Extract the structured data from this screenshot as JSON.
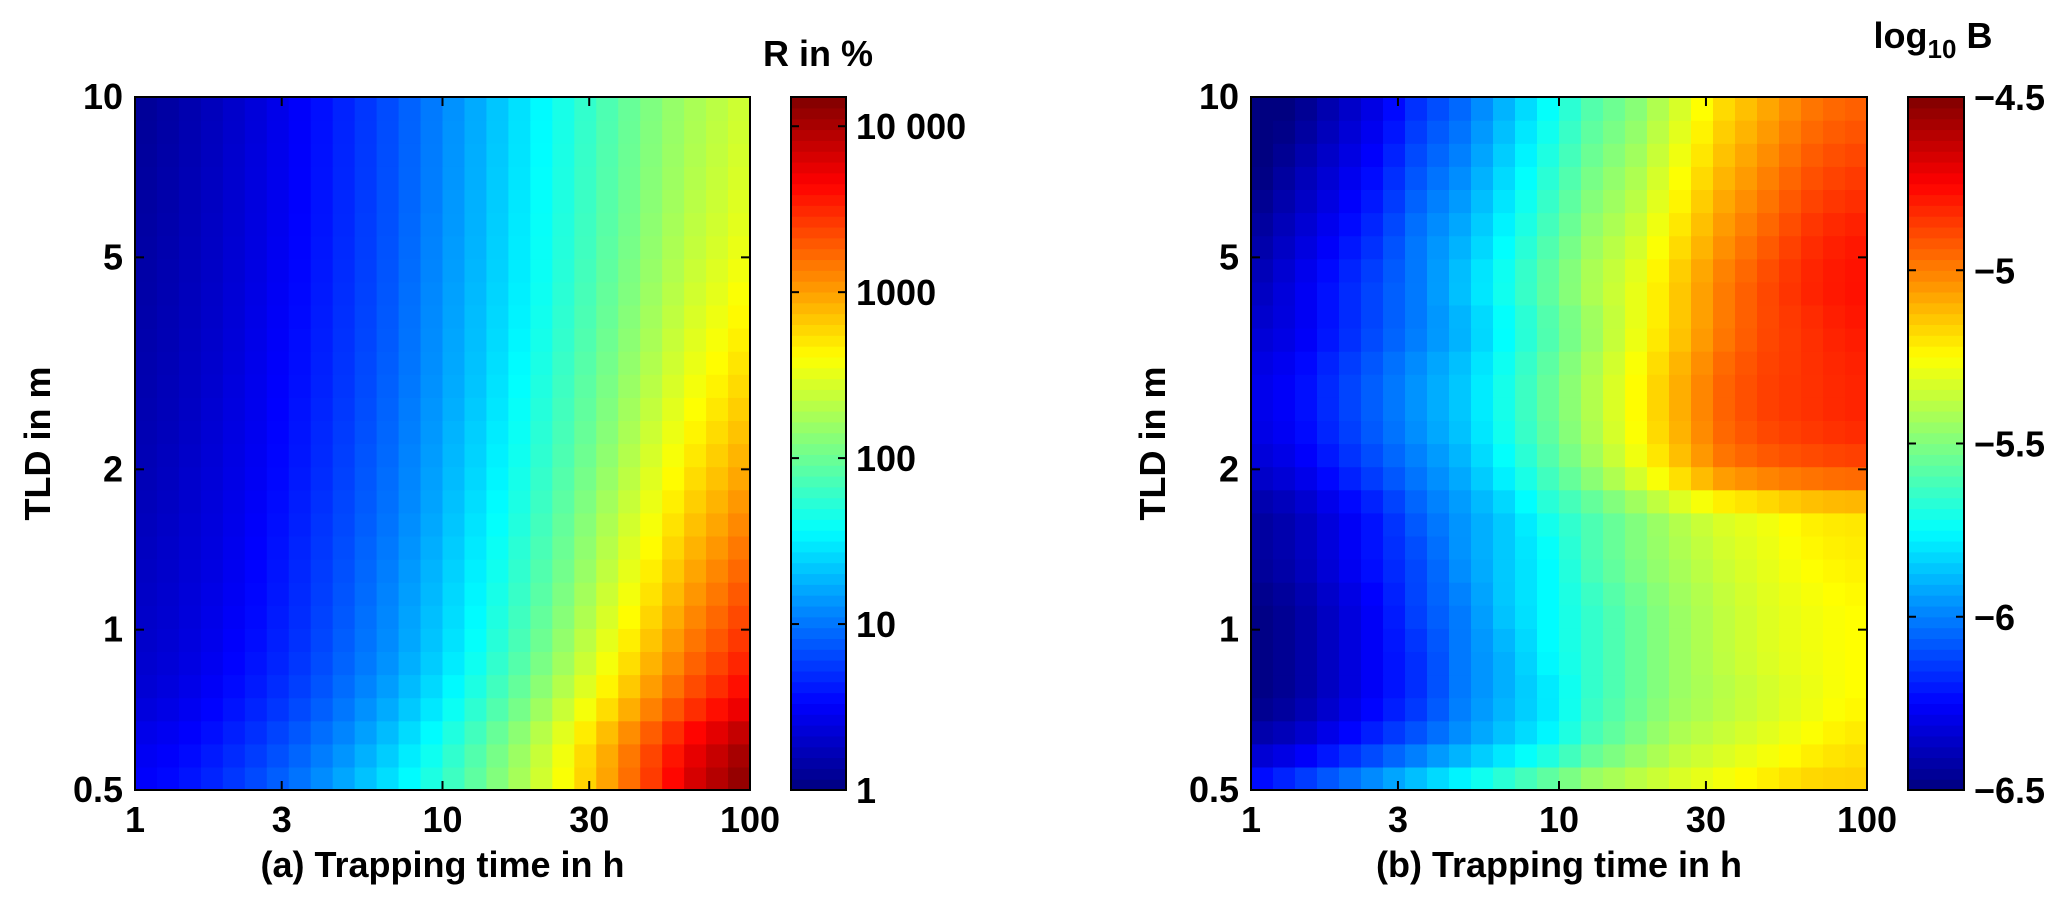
{
  "chart_data": [
    {
      "type": "heatmap",
      "panel_label": "(a)",
      "xlabel": "(a) Trapping time in h",
      "ylabel": "TLD in m",
      "x_scale": "log",
      "y_scale": "log",
      "xlim": [
        1,
        100
      ],
      "ylim": [
        0.5,
        10
      ],
      "x_ticks": [
        1,
        3,
        10,
        30,
        100
      ],
      "x_tick_labels": [
        "1",
        "3",
        "10",
        "30",
        "100"
      ],
      "y_ticks": [
        0.5,
        1,
        2,
        5,
        10
      ],
      "y_tick_labels": [
        "0.5",
        "1",
        "2",
        "5",
        "10"
      ],
      "colorbar": {
        "title": "R in %",
        "scale": "log",
        "range": [
          1,
          15000
        ],
        "ticks": [
          1,
          10,
          100,
          1000,
          10000
        ],
        "tick_labels": [
          "1",
          "10",
          "100",
          "1000",
          "10 000"
        ],
        "colormap": "jet"
      },
      "grid": false,
      "x": [
        1,
        1.38,
        1.89,
        2.6,
        3.57,
        4.91,
        6.76,
        9.3,
        12.8,
        17.6,
        24.2,
        33.3,
        45.8,
        63,
        86.6,
        100
      ],
      "y": [
        0.5,
        0.61,
        0.74,
        0.9,
        1.1,
        1.35,
        1.64,
        2.0,
        2.45,
        2.99,
        3.65,
        4.46,
        5.45,
        6.66,
        8.13,
        10
      ],
      "values_grid_description_units": "R in %",
      "values": [
        [
          3.2,
          3.8,
          5.2,
          7.5,
          11,
          18,
          30,
          52,
          95,
          180,
          380,
          900,
          2400,
          6500,
          12000,
          15000
        ],
        [
          2.8,
          3.2,
          4.2,
          5.8,
          8.5,
          13,
          22,
          40,
          75,
          150,
          330,
          800,
          2000,
          4800,
          8500,
          11000
        ],
        [
          2.2,
          2.6,
          3.4,
          4.6,
          6.5,
          10,
          16,
          28,
          52,
          100,
          210,
          460,
          1050,
          2300,
          4000,
          5200
        ],
        [
          2.0,
          2.3,
          3.0,
          4.0,
          5.6,
          8.5,
          13,
          22,
          40,
          75,
          150,
          320,
          700,
          1500,
          2600,
          3400
        ],
        [
          1.9,
          2.2,
          2.8,
          3.7,
          5.2,
          7.8,
          12,
          20,
          35,
          63,
          120,
          250,
          520,
          1100,
          1900,
          2500
        ],
        [
          1.8,
          2.1,
          2.6,
          3.5,
          4.9,
          7.2,
          11,
          18,
          31,
          55,
          100,
          200,
          410,
          820,
          1400,
          1800
        ],
        [
          1.7,
          2.0,
          2.5,
          3.3,
          4.6,
          6.7,
          10,
          16,
          28,
          48,
          88,
          170,
          330,
          640,
          1050,
          1350
        ],
        [
          1.6,
          1.9,
          2.4,
          3.1,
          4.3,
          6.3,
          9.4,
          15,
          25,
          43,
          76,
          140,
          270,
          500,
          800,
          1000
        ],
        [
          1.55,
          1.8,
          2.3,
          3.0,
          4.1,
          5.9,
          8.8,
          14,
          23,
          39,
          68,
          120,
          225,
          400,
          620,
          780
        ],
        [
          1.5,
          1.75,
          2.2,
          2.9,
          3.9,
          5.6,
          8.3,
          13,
          21,
          36,
          62,
          108,
          190,
          330,
          500,
          620
        ],
        [
          1.45,
          1.7,
          2.1,
          2.8,
          3.8,
          5.4,
          7.9,
          12.5,
          20,
          33,
          56,
          96,
          165,
          280,
          410,
          500
        ],
        [
          1.4,
          1.65,
          2.05,
          2.7,
          3.6,
          5.2,
          7.6,
          12,
          19,
          31,
          52,
          88,
          148,
          240,
          350,
          420
        ],
        [
          1.35,
          1.6,
          2.0,
          2.6,
          3.5,
          5.0,
          7.3,
          11.5,
          18,
          30,
          49,
          82,
          135,
          215,
          300,
          360
        ],
        [
          1.3,
          1.55,
          1.95,
          2.55,
          3.4,
          4.9,
          7.1,
          11,
          17.5,
          29,
          47,
          78,
          126,
          195,
          270,
          320
        ],
        [
          1.25,
          1.5,
          1.9,
          2.5,
          3.35,
          4.8,
          7.0,
          10.8,
          17,
          28,
          45,
          75,
          120,
          182,
          250,
          290
        ],
        [
          1.2,
          1.45,
          1.85,
          2.45,
          3.3,
          4.7,
          6.9,
          10.6,
          16.5,
          27,
          44,
          72,
          115,
          172,
          235,
          270
        ]
      ]
    },
    {
      "type": "heatmap",
      "panel_label": "(b)",
      "xlabel": "(b) Trapping time in h",
      "ylabel": "TLD in m",
      "x_scale": "log",
      "y_scale": "log",
      "xlim": [
        1,
        100
      ],
      "ylim": [
        0.5,
        10
      ],
      "x_ticks": [
        1,
        3,
        10,
        30,
        100
      ],
      "x_tick_labels": [
        "1",
        "3",
        "10",
        "30",
        "100"
      ],
      "y_ticks": [
        0.5,
        1,
        2,
        5,
        10
      ],
      "y_tick_labels": [
        "0.5",
        "1",
        "2",
        "5",
        "10"
      ],
      "colorbar": {
        "title_base": "log",
        "title_sub": "10",
        "title_tail": " B",
        "scale": "linear",
        "range": [
          -6.5,
          -4.5
        ],
        "ticks": [
          -6.5,
          -6,
          -5.5,
          -5,
          -4.5
        ],
        "tick_labels": [
          "−6.5",
          "−6",
          "−5.5",
          "−5",
          "−4.5"
        ],
        "colormap": "jet"
      },
      "grid": false,
      "x": [
        1,
        1.38,
        1.89,
        2.6,
        3.57,
        4.91,
        6.76,
        9.3,
        12.8,
        17.6,
        24.2,
        33.3,
        45.8,
        63,
        86.6,
        100
      ],
      "y": [
        0.5,
        0.61,
        0.74,
        0.9,
        1.1,
        1.35,
        1.64,
        2.0,
        2.45,
        2.99,
        3.65,
        4.46,
        5.45,
        6.66,
        8.13,
        10
      ],
      "values": [
        [
          -6.2,
          -6.1,
          -6.0,
          -5.9,
          -5.8,
          -5.7,
          -5.6,
          -5.5,
          -5.4,
          -5.35,
          -5.3,
          -5.25,
          -5.2,
          -5.15,
          -5.15,
          -5.15
        ],
        [
          -6.4,
          -6.35,
          -6.25,
          -6.15,
          -6.05,
          -5.95,
          -5.85,
          -5.75,
          -5.6,
          -5.5,
          -5.4,
          -5.35,
          -5.3,
          -5.25,
          -5.2,
          -5.2
        ],
        [
          -6.5,
          -6.45,
          -6.35,
          -6.25,
          -6.15,
          -6.0,
          -5.9,
          -5.8,
          -5.65,
          -5.55,
          -5.45,
          -5.4,
          -5.35,
          -5.3,
          -5.25,
          -5.25
        ],
        [
          -6.5,
          -6.45,
          -6.35,
          -6.25,
          -6.15,
          -6.0,
          -5.9,
          -5.75,
          -5.65,
          -5.55,
          -5.45,
          -5.38,
          -5.32,
          -5.28,
          -5.25,
          -5.25
        ],
        [
          -6.5,
          -6.45,
          -6.35,
          -6.25,
          -6.1,
          -6.0,
          -5.85,
          -5.75,
          -5.65,
          -5.55,
          -5.45,
          -5.38,
          -5.32,
          -5.28,
          -5.25,
          -5.25
        ],
        [
          -6.45,
          -6.4,
          -6.3,
          -6.2,
          -6.1,
          -5.95,
          -5.85,
          -5.75,
          -5.6,
          -5.5,
          -5.42,
          -5.35,
          -5.3,
          -5.25,
          -5.22,
          -5.22
        ],
        [
          -6.45,
          -6.4,
          -6.3,
          -6.2,
          -6.05,
          -5.95,
          -5.85,
          -5.7,
          -5.6,
          -5.5,
          -5.4,
          -5.32,
          -5.28,
          -5.22,
          -5.2,
          -5.2
        ],
        [
          -6.35,
          -6.3,
          -6.2,
          -6.1,
          -6.0,
          -5.9,
          -5.75,
          -5.6,
          -5.45,
          -5.3,
          -5.15,
          -5.0,
          -4.95,
          -4.92,
          -4.9,
          -4.9
        ],
        [
          -6.3,
          -6.25,
          -6.15,
          -6.05,
          -5.95,
          -5.85,
          -5.7,
          -5.55,
          -5.4,
          -5.25,
          -5.1,
          -4.95,
          -4.88,
          -4.85,
          -4.82,
          -4.82
        ],
        [
          -6.3,
          -6.25,
          -6.15,
          -6.05,
          -5.95,
          -5.85,
          -5.7,
          -5.55,
          -5.4,
          -5.25,
          -5.1,
          -4.95,
          -4.88,
          -4.85,
          -4.82,
          -4.82
        ],
        [
          -6.35,
          -6.3,
          -6.2,
          -6.1,
          -6.0,
          -5.9,
          -5.75,
          -5.6,
          -5.45,
          -5.3,
          -5.15,
          -5.0,
          -4.9,
          -4.85,
          -4.8,
          -4.8
        ],
        [
          -6.4,
          -6.3,
          -6.2,
          -6.1,
          -6.0,
          -5.85,
          -5.7,
          -5.55,
          -5.4,
          -5.3,
          -5.15,
          -5.0,
          -4.9,
          -4.82,
          -4.78,
          -4.78
        ],
        [
          -6.45,
          -6.35,
          -6.25,
          -6.15,
          -6.0,
          -5.9,
          -5.75,
          -5.6,
          -5.45,
          -5.35,
          -5.2,
          -5.05,
          -4.95,
          -4.85,
          -4.8,
          -4.8
        ],
        [
          -6.5,
          -6.4,
          -6.3,
          -6.2,
          -6.05,
          -5.95,
          -5.8,
          -5.65,
          -5.5,
          -5.4,
          -5.25,
          -5.1,
          -5.0,
          -4.9,
          -4.85,
          -4.85
        ],
        [
          -6.55,
          -6.45,
          -6.35,
          -6.25,
          -6.1,
          -6.0,
          -5.85,
          -5.7,
          -5.55,
          -5.45,
          -5.3,
          -5.15,
          -5.05,
          -4.95,
          -4.9,
          -4.9
        ],
        [
          -6.55,
          -6.5,
          -6.4,
          -6.3,
          -6.15,
          -6.05,
          -5.9,
          -5.75,
          -5.6,
          -5.5,
          -5.35,
          -5.2,
          -5.1,
          -5.0,
          -4.95,
          -4.95
        ]
      ]
    }
  ]
}
